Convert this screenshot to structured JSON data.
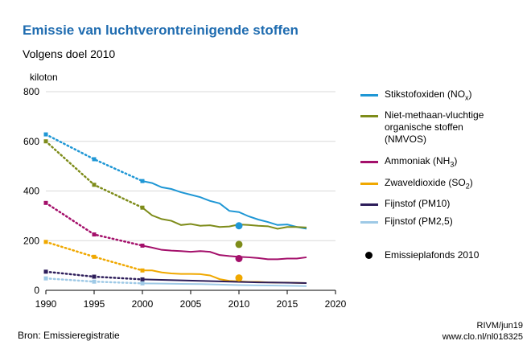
{
  "header": {
    "title": "Emissie van luchtverontreinigende stoffen",
    "subtitle": "Volgens doel 2010"
  },
  "footer": {
    "source": "Bron: Emissieregistratie",
    "credit_line1": "RIVM/jun19",
    "credit_line2": "www.clo.nl/nl018325"
  },
  "chart_data": {
    "type": "line",
    "ylabel": "kiloton",
    "xlim": [
      1990,
      2020
    ],
    "ylim": [
      0,
      800
    ],
    "x_ticks": [
      "1990",
      "1995",
      "2000",
      "2005",
      "2010",
      "2015",
      "2020"
    ],
    "y_ticks": [
      "0",
      "200",
      "400",
      "600",
      "800"
    ],
    "grid": true,
    "legend_position": "right",
    "series": [
      {
        "key": "nox",
        "name": "Stikstofoxiden (NOx)",
        "name_main": "Stikstofoxiden (NO",
        "name_sub": "x",
        "name_end": ")",
        "color": "#1f97d5",
        "dotted": [
          [
            1990,
            628
          ],
          [
            1995,
            528
          ],
          [
            2000,
            440
          ]
        ],
        "solid": [
          [
            2000,
            440
          ],
          [
            2001,
            432
          ],
          [
            2002,
            415
          ],
          [
            2003,
            408
          ],
          [
            2004,
            395
          ],
          [
            2005,
            385
          ],
          [
            2006,
            375
          ],
          [
            2007,
            360
          ],
          [
            2008,
            350
          ],
          [
            2009,
            320
          ],
          [
            2010,
            315
          ],
          [
            2011,
            298
          ],
          [
            2012,
            285
          ],
          [
            2013,
            275
          ],
          [
            2014,
            263
          ],
          [
            2015,
            265
          ],
          [
            2016,
            255
          ],
          [
            2017,
            248
          ]
        ],
        "ceiling": [
          2010,
          260
        ]
      },
      {
        "key": "nmvos",
        "name": "Niet-methaan-vluchtige organische stoffen (NMVOS)",
        "name_lines": [
          "Niet-methaan-vluchtige",
          "organische stoffen",
          "(NMVOS)"
        ],
        "color": "#7e8c1a",
        "dotted": [
          [
            1990,
            600
          ],
          [
            1995,
            425
          ],
          [
            2000,
            333
          ]
        ],
        "solid": [
          [
            2000,
            333
          ],
          [
            2001,
            302
          ],
          [
            2002,
            287
          ],
          [
            2003,
            280
          ],
          [
            2004,
            263
          ],
          [
            2005,
            267
          ],
          [
            2006,
            260
          ],
          [
            2007,
            262
          ],
          [
            2008,
            255
          ],
          [
            2009,
            257
          ],
          [
            2010,
            265
          ],
          [
            2011,
            263
          ],
          [
            2012,
            260
          ],
          [
            2013,
            258
          ],
          [
            2014,
            248
          ],
          [
            2015,
            255
          ],
          [
            2016,
            255
          ],
          [
            2017,
            253
          ]
        ],
        "ceiling": [
          2010,
          185
        ]
      },
      {
        "key": "nh3",
        "name": "Ammoniak (NH3)",
        "name_main": "Ammoniak (NH",
        "name_sub": "3",
        "name_end": ")",
        "color": "#a4106b",
        "dotted": [
          [
            1990,
            352
          ],
          [
            1995,
            225
          ],
          [
            2000,
            180
          ]
        ],
        "solid": [
          [
            2000,
            180
          ],
          [
            2001,
            172
          ],
          [
            2002,
            163
          ],
          [
            2003,
            160
          ],
          [
            2004,
            158
          ],
          [
            2005,
            155
          ],
          [
            2006,
            158
          ],
          [
            2007,
            155
          ],
          [
            2008,
            142
          ],
          [
            2009,
            138
          ],
          [
            2010,
            135
          ],
          [
            2011,
            133
          ],
          [
            2012,
            130
          ],
          [
            2013,
            125
          ],
          [
            2014,
            125
          ],
          [
            2015,
            128
          ],
          [
            2016,
            128
          ],
          [
            2017,
            133
          ]
        ],
        "ceiling": [
          2010,
          128
        ]
      },
      {
        "key": "so2",
        "name": "Zwaveldioxide (SO2)",
        "name_main": "Zwaveldioxide (SO",
        "name_sub": "2",
        "name_end": ")",
        "color": "#f0a800",
        "dotted": [
          [
            1990,
            195
          ],
          [
            1995,
            135
          ],
          [
            2000,
            80
          ]
        ],
        "solid": [
          [
            2000,
            80
          ],
          [
            2001,
            80
          ],
          [
            2002,
            72
          ],
          [
            2003,
            68
          ],
          [
            2004,
            66
          ],
          [
            2005,
            66
          ],
          [
            2006,
            65
          ],
          [
            2007,
            60
          ],
          [
            2008,
            45
          ],
          [
            2009,
            38
          ],
          [
            2010,
            36
          ],
          [
            2011,
            34
          ],
          [
            2012,
            34
          ],
          [
            2013,
            32
          ],
          [
            2014,
            31
          ],
          [
            2015,
            31
          ],
          [
            2016,
            30
          ],
          [
            2017,
            29
          ]
        ],
        "ceiling": [
          2010,
          50
        ]
      },
      {
        "key": "pm10",
        "name": "Fijnstof (PM10)",
        "color": "#2d1d5a",
        "dotted": [
          [
            1990,
            75
          ],
          [
            1995,
            55
          ],
          [
            2000,
            44
          ]
        ],
        "solid": [
          [
            2000,
            44
          ],
          [
            2002,
            42
          ],
          [
            2004,
            40
          ],
          [
            2006,
            38
          ],
          [
            2008,
            36
          ],
          [
            2010,
            34
          ],
          [
            2012,
            32
          ],
          [
            2014,
            31
          ],
          [
            2016,
            30
          ],
          [
            2017,
            29
          ]
        ]
      },
      {
        "key": "pm25",
        "name": "Fijnstof (PM2,5)",
        "color": "#9ec9e6",
        "dotted": [
          [
            1990,
            48
          ],
          [
            1995,
            35
          ],
          [
            2000,
            28
          ]
        ],
        "solid": [
          [
            2000,
            28
          ],
          [
            2002,
            27
          ],
          [
            2004,
            26
          ],
          [
            2006,
            25
          ],
          [
            2008,
            23
          ],
          [
            2010,
            21
          ],
          [
            2012,
            20
          ],
          [
            2014,
            19
          ],
          [
            2016,
            18
          ],
          [
            2017,
            17
          ]
        ]
      }
    ],
    "ceiling_legend": "Emissieplafonds 2010"
  }
}
